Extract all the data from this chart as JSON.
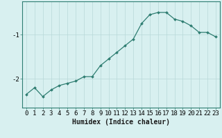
{
  "x": [
    0,
    1,
    2,
    3,
    4,
    5,
    6,
    7,
    8,
    9,
    10,
    11,
    12,
    13,
    14,
    15,
    16,
    17,
    18,
    19,
    20,
    21,
    22,
    23
  ],
  "y": [
    -2.35,
    -2.2,
    -2.4,
    -2.25,
    -2.15,
    -2.1,
    -2.05,
    -1.95,
    -1.95,
    -1.7,
    -1.55,
    -1.4,
    -1.25,
    -1.1,
    -0.75,
    -0.55,
    -0.5,
    -0.5,
    -0.65,
    -0.7,
    -0.8,
    -0.95,
    -0.95,
    -1.05
  ],
  "line_color": "#2e7d71",
  "marker": "D",
  "marker_size": 2.0,
  "line_width": 0.9,
  "xlabel": "Humidex (Indice chaleur)",
  "xlabel_fontsize": 7,
  "yticks": [
    -2,
    -1
  ],
  "ylim": [
    -2.65,
    -0.25
  ],
  "xlim": [
    -0.5,
    23.5
  ],
  "xtick_labels": [
    "0",
    "1",
    "2",
    "3",
    "4",
    "5",
    "6",
    "7",
    "8",
    "9",
    "10",
    "11",
    "12",
    "13",
    "14",
    "15",
    "16",
    "17",
    "18",
    "19",
    "20",
    "21",
    "22",
    "23"
  ],
  "background_color": "#d8f0f0",
  "grid_color": "#b8d8d8",
  "tick_fontsize": 6.5,
  "fig_width": 3.2,
  "fig_height": 2.0,
  "dpi": 100
}
